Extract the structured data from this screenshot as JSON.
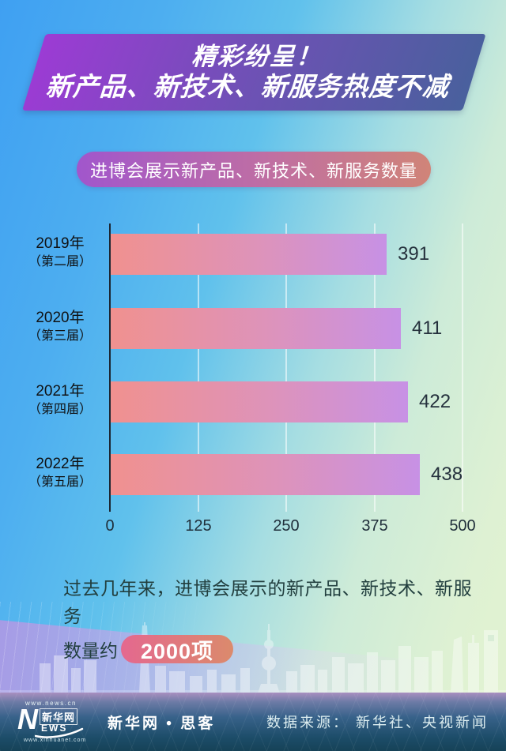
{
  "banner": {
    "line1": "精彩纷呈！",
    "line2": "新产品、新技术、新服务热度不减"
  },
  "subtitle": "进博会展示新产品、新技术、新服务数量",
  "chart_data": {
    "type": "bar",
    "orientation": "horizontal",
    "title": "进博会展示新产品、新技术、新服务数量",
    "categories": [
      "2019年（第二届）",
      "2020年（第三届）",
      "2021年（第四届）",
      "2022年（第五届）"
    ],
    "category_lines": [
      [
        "2019年",
        "（第二届）"
      ],
      [
        "2020年",
        "（第三届）"
      ],
      [
        "2021年",
        "（第四届）"
      ],
      [
        "2022年",
        "（第五届）"
      ]
    ],
    "values": [
      391,
      411,
      422,
      438
    ],
    "xlim": [
      0,
      500
    ],
    "x_ticks": [
      0,
      125,
      250,
      375,
      500
    ],
    "grid": true,
    "legend": "none",
    "bar_gradient": [
      "#f0918f",
      "#c791e5"
    ]
  },
  "footnote": {
    "line1": "过去几年来，进博会展示的新产品、新技术、新服务",
    "line2_prefix": "数量约",
    "highlight": "2000项"
  },
  "footer": {
    "logo": {
      "url_top": "www.news.cn",
      "n": "N",
      "cn_name": "新华网",
      "ews": "EWS",
      "url_bottom": "www.xinhuanet.com"
    },
    "brand": "新华网 • 思客",
    "source": "数据来源： 新华社、央视新闻"
  },
  "colors": {
    "banner_gradient": [
      "#9c3bd4",
      "#6e51b5",
      "#49609d"
    ],
    "subtitle_gradient": [
      "#a156cc",
      "#d08478"
    ],
    "highlight_gradient": [
      "#e4688f",
      "#db8a6c"
    ],
    "background_blue": "#3fa0f2",
    "background_green": "#def1d3",
    "footer_dark": "#1c4c68",
    "axis_color": "#1c2733",
    "value_text": "#25313d"
  }
}
